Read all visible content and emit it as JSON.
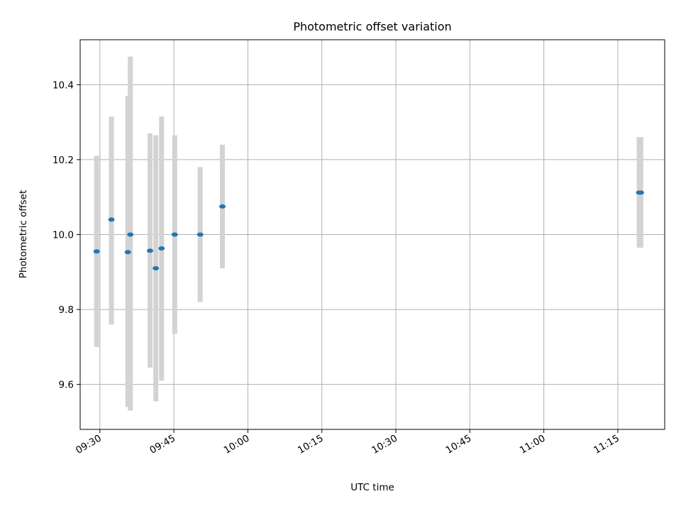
{
  "chart_data": {
    "type": "scatter",
    "title": "Photometric offset variation",
    "xlabel": "UTC time",
    "ylabel": "Photometric offset",
    "x_unit": "time (HH:MM, UTC)",
    "xlim": [
      "09:26:00",
      "11:24:30"
    ],
    "ylim": [
      9.48,
      10.52
    ],
    "grid": true,
    "x_ticks": [
      "09:30",
      "09:45",
      "10:00",
      "10:15",
      "10:30",
      "10:45",
      "11:00",
      "11:15"
    ],
    "y_ticks": [
      9.6,
      9.8,
      10.0,
      10.2,
      10.4
    ],
    "y_tick_labels": [
      "9.6",
      "9.8",
      "10.0",
      "10.2",
      "10.4"
    ],
    "colors": {
      "marker": "#1f77b4",
      "errorbar": "#d3d3d3"
    },
    "points": [
      {
        "x": "09:29:20",
        "y": 9.955,
        "err_low": 9.7,
        "err_high": 10.21
      },
      {
        "x": "09:32:20",
        "y": 10.04,
        "err_low": 9.76,
        "err_high": 10.315
      },
      {
        "x": "09:35:40",
        "y": 9.953,
        "err_low": 9.54,
        "err_high": 10.37
      },
      {
        "x": "09:36:10",
        "y": 10.0,
        "err_low": 9.53,
        "err_high": 10.475
      },
      {
        "x": "09:40:10",
        "y": 9.957,
        "err_low": 9.645,
        "err_high": 10.27
      },
      {
        "x": "09:41:20",
        "y": 9.91,
        "err_low": 9.555,
        "err_high": 10.265
      },
      {
        "x": "09:42:30",
        "y": 9.963,
        "err_low": 9.61,
        "err_high": 10.315
      },
      {
        "x": "09:45:10",
        "y": 10.0,
        "err_low": 9.735,
        "err_high": 10.265
      },
      {
        "x": "09:50:20",
        "y": 10.0,
        "err_low": 9.82,
        "err_high": 10.18
      },
      {
        "x": "09:54:50",
        "y": 10.075,
        "err_low": 9.91,
        "err_high": 10.24
      },
      {
        "x": "11:19:20",
        "y": 10.112,
        "err_low": 9.965,
        "err_high": 10.26
      },
      {
        "x": "11:19:40",
        "y": 10.112,
        "err_low": 9.965,
        "err_high": 10.26
      }
    ]
  }
}
